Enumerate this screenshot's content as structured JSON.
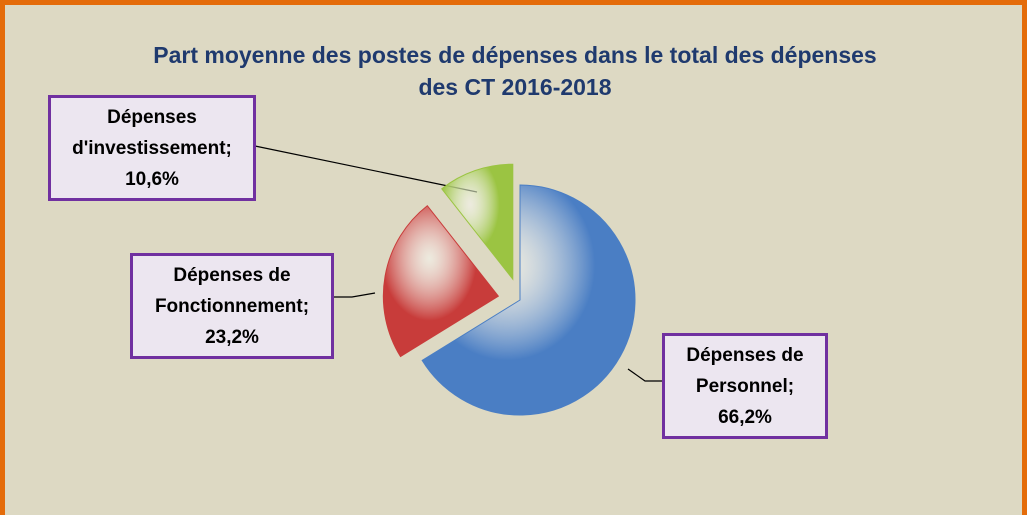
{
  "chart_data": {
    "type": "pie",
    "title": "Part moyenne des postes de dépenses dans le total des dépenses des CT 2016-2018",
    "categories": [
      "Dépenses de Personnel",
      "Dépenses de Fonctionnement",
      "Dépenses d'investissement"
    ],
    "values": [
      66.2,
      23.2,
      10.6
    ],
    "value_labels": [
      "66,2%",
      "23,2%",
      "10,6%"
    ],
    "label_separator": ";",
    "colors": [
      "#4a7ec4",
      "#c83c3a",
      "#9bc442"
    ]
  }
}
